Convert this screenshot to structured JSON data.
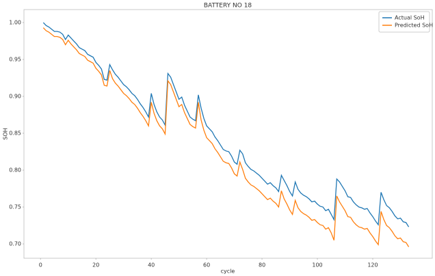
{
  "chart_data": {
    "type": "line",
    "title": "BATTERY NO 18",
    "xlabel": "cycle",
    "ylabel": "SOH",
    "legend": "upper right",
    "x": [
      1,
      2,
      3,
      4,
      5,
      6,
      7,
      8,
      9,
      10,
      11,
      12,
      13,
      14,
      15,
      16,
      17,
      18,
      19,
      20,
      21,
      22,
      23,
      24,
      25,
      26,
      27,
      28,
      29,
      30,
      31,
      32,
      33,
      34,
      35,
      36,
      37,
      38,
      39,
      40,
      41,
      42,
      43,
      44,
      45,
      46,
      47,
      48,
      49,
      50,
      51,
      52,
      53,
      54,
      55,
      56,
      57,
      58,
      59,
      60,
      61,
      62,
      63,
      64,
      65,
      66,
      67,
      68,
      69,
      70,
      71,
      72,
      73,
      74,
      75,
      76,
      77,
      78,
      79,
      80,
      81,
      82,
      83,
      84,
      85,
      86,
      87,
      88,
      89,
      90,
      91,
      92,
      93,
      94,
      95,
      96,
      97,
      98,
      99,
      100,
      101,
      102,
      103,
      104,
      105,
      106,
      107,
      108,
      109,
      110,
      111,
      112,
      113,
      114,
      115,
      116,
      117,
      118,
      119,
      120,
      121,
      122,
      123,
      124,
      125,
      126,
      127,
      128,
      129,
      130,
      131,
      132,
      133
    ],
    "series": [
      {
        "name": "Actual SoH",
        "color": "#1f77b4",
        "values": [
          1.0,
          0.996,
          0.994,
          0.991,
          0.988,
          0.988,
          0.987,
          0.984,
          0.977,
          0.983,
          0.979,
          0.975,
          0.971,
          0.966,
          0.964,
          0.962,
          0.957,
          0.955,
          0.953,
          0.946,
          0.942,
          0.937,
          0.923,
          0.922,
          0.943,
          0.936,
          0.93,
          0.926,
          0.921,
          0.916,
          0.913,
          0.909,
          0.904,
          0.901,
          0.896,
          0.89,
          0.885,
          0.879,
          0.872,
          0.904,
          0.889,
          0.879,
          0.872,
          0.868,
          0.861,
          0.931,
          0.926,
          0.916,
          0.906,
          0.896,
          0.899,
          0.888,
          0.88,
          0.872,
          0.869,
          0.867,
          0.902,
          0.884,
          0.87,
          0.86,
          0.856,
          0.852,
          0.845,
          0.84,
          0.834,
          0.828,
          0.826,
          0.825,
          0.819,
          0.811,
          0.808,
          0.827,
          0.822,
          0.81,
          0.805,
          0.801,
          0.799,
          0.796,
          0.793,
          0.789,
          0.785,
          0.781,
          0.783,
          0.779,
          0.776,
          0.771,
          0.793,
          0.786,
          0.779,
          0.771,
          0.765,
          0.784,
          0.774,
          0.769,
          0.766,
          0.764,
          0.761,
          0.757,
          0.758,
          0.754,
          0.751,
          0.75,
          0.745,
          0.747,
          0.74,
          0.733,
          0.788,
          0.784,
          0.778,
          0.772,
          0.764,
          0.763,
          0.757,
          0.753,
          0.75,
          0.749,
          0.747,
          0.748,
          0.742,
          0.737,
          0.731,
          0.726,
          0.77,
          0.76,
          0.752,
          0.749,
          0.744,
          0.738,
          0.734,
          0.735,
          0.73,
          0.729,
          0.723
        ]
      },
      {
        "name": "Predicted SoH",
        "color": "#ff7f0e",
        "values": [
          0.993,
          0.989,
          0.987,
          0.984,
          0.981,
          0.981,
          0.98,
          0.977,
          0.97,
          0.976,
          0.971,
          0.967,
          0.963,
          0.958,
          0.956,
          0.954,
          0.949,
          0.947,
          0.945,
          0.938,
          0.934,
          0.929,
          0.915,
          0.914,
          0.935,
          0.924,
          0.918,
          0.914,
          0.909,
          0.904,
          0.901,
          0.897,
          0.892,
          0.889,
          0.884,
          0.878,
          0.873,
          0.867,
          0.86,
          0.892,
          0.877,
          0.867,
          0.86,
          0.856,
          0.849,
          0.921,
          0.916,
          0.906,
          0.896,
          0.886,
          0.889,
          0.878,
          0.87,
          0.862,
          0.859,
          0.857,
          0.892,
          0.868,
          0.854,
          0.844,
          0.84,
          0.836,
          0.829,
          0.824,
          0.818,
          0.812,
          0.81,
          0.809,
          0.803,
          0.795,
          0.792,
          0.811,
          0.801,
          0.789,
          0.784,
          0.78,
          0.778,
          0.775,
          0.772,
          0.768,
          0.764,
          0.76,
          0.762,
          0.758,
          0.755,
          0.75,
          0.772,
          0.761,
          0.754,
          0.746,
          0.74,
          0.759,
          0.749,
          0.744,
          0.741,
          0.739,
          0.736,
          0.732,
          0.733,
          0.729,
          0.726,
          0.725,
          0.72,
          0.722,
          0.715,
          0.705,
          0.765,
          0.757,
          0.751,
          0.745,
          0.737,
          0.736,
          0.73,
          0.726,
          0.723,
          0.722,
          0.72,
          0.721,
          0.715,
          0.71,
          0.704,
          0.699,
          0.744,
          0.733,
          0.725,
          0.722,
          0.717,
          0.711,
          0.707,
          0.708,
          0.703,
          0.702,
          0.696
        ]
      }
    ],
    "xlim": [
      -6,
      141.5
    ],
    "xticks": [
      0,
      20,
      40,
      60,
      80,
      100,
      120
    ],
    "ylim": [
      0.6806,
      1.0176
    ],
    "yticks": [
      {
        "value": 0.7,
        "label": "0.70"
      },
      {
        "value": 0.75,
        "label": "0.75"
      },
      {
        "value": 0.8,
        "label": "0.80"
      },
      {
        "value": 0.85,
        "label": "0.85"
      },
      {
        "value": 0.9,
        "label": "0.90"
      },
      {
        "value": 0.95,
        "label": "0.95"
      },
      {
        "value": 1.0,
        "label": "1.00"
      }
    ],
    "grid": false
  }
}
